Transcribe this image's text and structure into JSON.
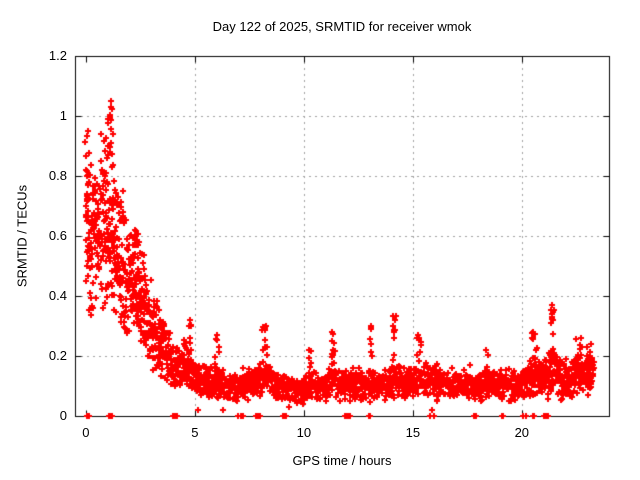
{
  "window": {
    "bg": "#ffffff",
    "text_color": "#000000"
  },
  "chart_data": {
    "type": "scatter",
    "title": "Day 122 of 2025, SRMTID for receiver wmok",
    "xlabel": "GPS time / hours",
    "ylabel": "SRMTID / TECUs",
    "xlim": [
      -0.5,
      24
    ],
    "ylim": [
      0,
      1.2
    ],
    "x_ticks": [
      [
        0,
        "0"
      ],
      [
        5,
        "5"
      ],
      [
        10,
        "10"
      ],
      [
        15,
        "15"
      ],
      [
        20,
        "20"
      ]
    ],
    "y_ticks": [
      [
        0,
        "0"
      ],
      [
        0.2,
        "0.2"
      ],
      [
        0.4,
        "0.4"
      ],
      [
        0.6,
        "0.6"
      ],
      [
        0.8,
        "0.8"
      ],
      [
        1,
        "1"
      ],
      [
        1.2,
        "1.2"
      ]
    ],
    "grid": true,
    "grid_x": [
      5,
      10,
      15,
      20
    ],
    "grid_y": [
      0.2,
      0.4,
      0.6,
      0.8,
      1.0
    ],
    "grid_color": "#a0a0a0",
    "frame_color": "#000000",
    "legend": "none",
    "marker": {
      "shape": "plus",
      "size": 7,
      "stroke": 2,
      "color": "#ff0000"
    },
    "summary": "SRMTID scatter vs GPS time: values 0.3-1.05 TECU during 0-2 h (peak ~1.05 at ~1.2 h) decaying to ~0.1 TECU baseline by 5 h; baseline band 0.05-0.2 TECU for 5-23.3 h with transient peaks ~0.25-0.37 TECU near 8.2, 11.4, 13.1, 14.1, 20.6, 21.4 and 22.6 h; scattered exact-zero values.",
    "series": [
      {
        "name": "SRMTID",
        "seed": 20250122,
        "t_step": 0.02,
        "t_range": [
          0,
          23.3
        ],
        "envelope": [
          [
            0.0,
            0.63,
            0.3,
            3.0
          ],
          [
            0.3,
            0.6,
            0.27,
            3.0
          ],
          [
            0.6,
            0.63,
            0.26,
            2.8
          ],
          [
            1.0,
            0.64,
            0.3,
            3.0
          ],
          [
            1.4,
            0.55,
            0.26,
            2.8
          ],
          [
            1.8,
            0.48,
            0.2,
            2.6
          ],
          [
            2.2,
            0.44,
            0.17,
            2.6
          ],
          [
            2.6,
            0.4,
            0.15,
            2.6
          ],
          [
            3.0,
            0.3,
            0.14,
            2.3
          ],
          [
            3.4,
            0.24,
            0.11,
            2.1
          ],
          [
            3.8,
            0.2,
            0.09,
            2.0
          ],
          [
            4.2,
            0.17,
            0.08,
            1.9
          ],
          [
            4.6,
            0.16,
            0.08,
            1.9
          ],
          [
            5.0,
            0.135,
            0.06,
            1.8
          ],
          [
            5.5,
            0.115,
            0.05,
            1.8
          ],
          [
            6.0,
            0.12,
            0.055,
            1.8
          ],
          [
            6.5,
            0.105,
            0.05,
            1.8
          ],
          [
            7.0,
            0.1,
            0.05,
            1.8
          ],
          [
            7.5,
            0.11,
            0.05,
            1.8
          ],
          [
            8.0,
            0.12,
            0.055,
            1.8
          ],
          [
            8.3,
            0.13,
            0.06,
            1.8
          ],
          [
            8.7,
            0.11,
            0.05,
            1.8
          ],
          [
            9.0,
            0.1,
            0.045,
            1.8
          ],
          [
            9.5,
            0.085,
            0.04,
            1.8
          ],
          [
            10.0,
            0.085,
            0.04,
            1.8
          ],
          [
            10.5,
            0.1,
            0.05,
            1.8
          ],
          [
            11.0,
            0.1,
            0.05,
            1.8
          ],
          [
            11.4,
            0.12,
            0.06,
            1.8
          ],
          [
            11.8,
            0.1,
            0.05,
            1.8
          ],
          [
            12.2,
            0.11,
            0.05,
            1.8
          ],
          [
            12.6,
            0.1,
            0.05,
            1.8
          ],
          [
            13.0,
            0.1,
            0.05,
            1.8
          ],
          [
            13.4,
            0.115,
            0.055,
            1.8
          ],
          [
            13.8,
            0.1,
            0.05,
            1.8
          ],
          [
            14.2,
            0.12,
            0.06,
            1.8
          ],
          [
            14.6,
            0.115,
            0.055,
            1.8
          ],
          [
            15.0,
            0.11,
            0.05,
            1.8
          ],
          [
            15.4,
            0.12,
            0.055,
            1.8
          ],
          [
            16.0,
            0.115,
            0.06,
            1.8
          ],
          [
            16.5,
            0.1,
            0.05,
            1.8
          ],
          [
            17.0,
            0.105,
            0.05,
            1.8
          ],
          [
            17.5,
            0.115,
            0.05,
            1.8
          ],
          [
            18.0,
            0.1,
            0.05,
            1.8
          ],
          [
            18.5,
            0.105,
            0.05,
            1.8
          ],
          [
            19.0,
            0.11,
            0.05,
            1.8
          ],
          [
            19.5,
            0.1,
            0.05,
            1.8
          ],
          [
            20.0,
            0.11,
            0.05,
            1.8
          ],
          [
            20.5,
            0.14,
            0.07,
            1.9
          ],
          [
            21.0,
            0.12,
            0.06,
            1.9
          ],
          [
            21.4,
            0.16,
            0.08,
            2.0
          ],
          [
            21.8,
            0.12,
            0.06,
            1.9
          ],
          [
            22.2,
            0.13,
            0.06,
            1.9
          ],
          [
            22.6,
            0.14,
            0.07,
            2.0
          ],
          [
            23.0,
            0.145,
            0.07,
            2.0
          ],
          [
            23.3,
            0.13,
            0.06,
            1.9
          ]
        ],
        "spikes": [
          [
            0.05,
            0.95,
            12,
            0.15
          ],
          [
            1.15,
            1.05,
            22,
            0.3
          ],
          [
            2.3,
            0.62,
            15,
            0.35
          ],
          [
            4.7,
            0.32,
            10,
            0.3
          ],
          [
            6.0,
            0.27,
            8,
            0.2
          ],
          [
            8.2,
            0.3,
            12,
            0.25
          ],
          [
            10.3,
            0.22,
            7,
            0.15
          ],
          [
            11.35,
            0.28,
            10,
            0.2
          ],
          [
            13.1,
            0.3,
            8,
            0.12
          ],
          [
            14.15,
            0.335,
            12,
            0.18
          ],
          [
            15.3,
            0.27,
            8,
            0.2
          ],
          [
            18.4,
            0.22,
            5,
            0.15
          ],
          [
            20.6,
            0.28,
            10,
            0.3
          ],
          [
            21.4,
            0.37,
            14,
            0.15
          ],
          [
            22.6,
            0.26,
            10,
            0.3
          ],
          [
            23.1,
            0.24,
            8,
            0.2
          ]
        ],
        "zero_points_x": [
          0.05,
          0.1,
          0.15,
          1.05,
          1.1,
          1.2,
          4.0,
          4.1,
          4.2,
          7.0,
          7.1,
          7.2,
          7.8,
          7.85,
          7.9,
          7.95,
          8.0,
          9.05,
          9.1,
          9.2,
          11.9,
          11.95,
          12.0,
          12.05,
          12.1,
          13.0,
          13.05,
          15.8,
          15.95,
          17.8,
          17.9,
          19.1,
          19.15,
          20.05,
          20.2,
          20.5,
          20.55,
          21.0,
          21.05,
          21.1,
          21.15,
          21.2
        ],
        "low_points": [
          [
            5.15,
            0.02
          ],
          [
            6.3,
            0.02
          ],
          [
            9.3,
            0.03
          ],
          [
            15.9,
            0.02
          ]
        ]
      }
    ]
  }
}
